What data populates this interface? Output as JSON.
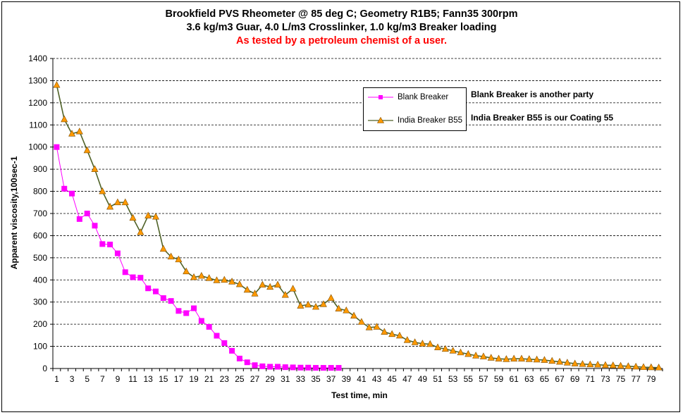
{
  "title": "Brookfield PVS Rheometer @ 85 deg C; Geometry R1B5; Fann35 300rpm",
  "subtitle": "3.6 kg/m3 Guar, 4.0 L/m3 Crosslinker, 1.0 kg/m3 Breaker loading",
  "note_red": "As tested by a petroleum chemist of a user.",
  "annotations": [
    "Blank Breaker is another party",
    "India Breaker B55 is our Coating  55"
  ],
  "colors": {
    "blank": "#ff00ff",
    "india_line": "#4f6228",
    "india_marker": "#ff9900",
    "grid": "#000000"
  },
  "chart_data": {
    "type": "line",
    "title": "Brookfield PVS Rheometer @ 85 deg C; Geometry R1B5; Fann35 300rpm",
    "xlabel": "Test time, min",
    "ylabel": "Apparent viscosity,100sec-1",
    "xlim": [
      1,
      80
    ],
    "ylim": [
      0,
      1400
    ],
    "yticks": [
      0,
      100,
      200,
      300,
      400,
      500,
      600,
      700,
      800,
      900,
      1000,
      1100,
      1200,
      1300,
      1400
    ],
    "xtick_labels": [
      1,
      3,
      5,
      7,
      9,
      11,
      13,
      15,
      17,
      19,
      21,
      23,
      25,
      27,
      29,
      31,
      33,
      35,
      37,
      39,
      41,
      43,
      45,
      47,
      49,
      51,
      53,
      55,
      57,
      59,
      61,
      63,
      65,
      67,
      69,
      71,
      73,
      75,
      77,
      79
    ],
    "grid": "horizontal dashed",
    "legend_position": "top-right",
    "series": [
      {
        "name": "Blank Breaker",
        "marker": "square",
        "color": "#ff00ff",
        "x": [
          1,
          2,
          3,
          4,
          5,
          6,
          7,
          8,
          9,
          10,
          11,
          12,
          13,
          14,
          15,
          16,
          17,
          18,
          19,
          20,
          21,
          22,
          23,
          24,
          25,
          26,
          27,
          28,
          29,
          30,
          31,
          32,
          33,
          34,
          35,
          36,
          37,
          38
        ],
        "values": [
          1000,
          812,
          790,
          675,
          700,
          645,
          562,
          560,
          520,
          435,
          412,
          410,
          362,
          348,
          318,
          305,
          260,
          250,
          272,
          215,
          188,
          148,
          115,
          80,
          45,
          28,
          15,
          10,
          8,
          8,
          6,
          5,
          4,
          4,
          3,
          3,
          3,
          3
        ]
      },
      {
        "name": "India Breaker B55",
        "marker": "triangle",
        "color": "#4f6228",
        "x": [
          1,
          2,
          3,
          4,
          5,
          6,
          7,
          8,
          9,
          10,
          11,
          12,
          13,
          14,
          15,
          16,
          17,
          18,
          19,
          20,
          21,
          22,
          23,
          24,
          25,
          26,
          27,
          28,
          29,
          30,
          31,
          32,
          33,
          34,
          35,
          36,
          37,
          38,
          39,
          40,
          41,
          42,
          43,
          44,
          45,
          46,
          47,
          48,
          49,
          50,
          51,
          52,
          53,
          54,
          55,
          56,
          57,
          58,
          59,
          60,
          61,
          62,
          63,
          64,
          65,
          66,
          67,
          68,
          69,
          70,
          71,
          72,
          73,
          74,
          75,
          76,
          77,
          78,
          79,
          80
        ],
        "values": [
          1280,
          1125,
          1060,
          1070,
          985,
          900,
          800,
          730,
          750,
          750,
          680,
          615,
          690,
          685,
          540,
          505,
          492,
          438,
          412,
          418,
          408,
          398,
          400,
          392,
          380,
          355,
          338,
          378,
          368,
          378,
          332,
          360,
          283,
          288,
          278,
          290,
          318,
          270,
          262,
          238,
          210,
          185,
          188,
          165,
          155,
          148,
          128,
          118,
          112,
          110,
          95,
          88,
          80,
          72,
          65,
          58,
          54,
          48,
          44,
          42,
          44,
          44,
          42,
          40,
          38,
          34,
          30,
          26,
          22,
          20,
          18,
          17,
          15,
          14,
          12,
          10,
          8,
          6,
          5,
          4
        ]
      }
    ]
  }
}
